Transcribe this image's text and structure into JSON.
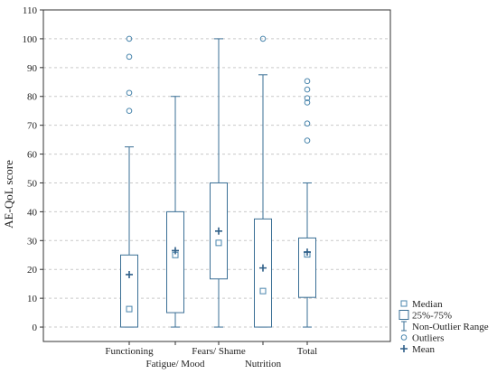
{
  "chart_data": {
    "type": "boxplot",
    "title": "",
    "xlabel": "",
    "ylabel": "AE-QoL score",
    "ylim": [
      -5,
      110
    ],
    "yticks": [
      0,
      10,
      20,
      30,
      40,
      50,
      60,
      70,
      80,
      90,
      100,
      110
    ],
    "grid": true,
    "legend_position": "bottom-right",
    "colors": {
      "box": "#3a6f95",
      "marker": "#4a86ad",
      "mean": "#2f5f88",
      "grid": "#c9c9c9",
      "axis": "#333333"
    },
    "categories": [
      "Functioning",
      "Fatigue/ Mood",
      "Fears/ Shame",
      "Nutrition",
      "Total"
    ],
    "boxes": [
      {
        "name": "Functioning",
        "min": 0,
        "q1": 0,
        "median": 6.25,
        "q3": 25,
        "max": 62.5,
        "mean": 18.2,
        "outliers": [
          75,
          81.25,
          93.75,
          100
        ]
      },
      {
        "name": "Fatigue/ Mood",
        "min": 0,
        "q1": 5,
        "median": 25,
        "q3": 40,
        "max": 80,
        "mean": 26.5,
        "outliers": []
      },
      {
        "name": "Fears/ Shame",
        "min": 0,
        "q1": 16.7,
        "median": 29.2,
        "q3": 50,
        "max": 100,
        "mean": 33.3,
        "outliers": []
      },
      {
        "name": "Nutrition",
        "min": 0,
        "q1": 0,
        "median": 12.5,
        "q3": 37.5,
        "max": 87.5,
        "mean": 20.5,
        "outliers": [
          100
        ]
      },
      {
        "name": "Total",
        "min": 0,
        "q1": 10.3,
        "median": 25.2,
        "q3": 30.9,
        "max": 50,
        "mean": 26,
        "outliers": [
          64.7,
          70.6,
          77.9,
          79.4,
          82.4,
          85.3
        ]
      }
    ],
    "legend": [
      "Median",
      "25%-75%",
      "Non-Outlier Range",
      "Outliers",
      "Mean"
    ]
  }
}
